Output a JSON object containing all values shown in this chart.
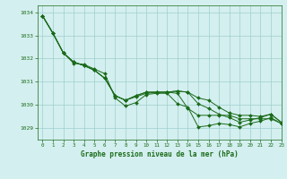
{
  "title": "Graphe pression niveau de la mer (hPa)",
  "background_color": "#d4efef",
  "grid_color": "#9ecece",
  "line_color": "#1a6b1a",
  "marker_color": "#1a6b1a",
  "xlim": [
    -0.5,
    23
  ],
  "ylim": [
    1028.5,
    1034.3
  ],
  "yticks": [
    1029,
    1030,
    1031,
    1032,
    1033,
    1034
  ],
  "xticks": [
    0,
    1,
    2,
    3,
    4,
    5,
    6,
    7,
    8,
    9,
    10,
    11,
    12,
    13,
    14,
    15,
    16,
    17,
    18,
    19,
    20,
    21,
    22,
    23
  ],
  "series": [
    [
      1033.85,
      1033.1,
      1032.25,
      1031.8,
      1031.75,
      1031.55,
      1031.35,
      1030.3,
      1029.95,
      1030.1,
      1030.45,
      1030.5,
      1030.5,
      1030.05,
      1029.9,
      1029.05,
      1029.1,
      1029.2,
      1029.15,
      1029.05,
      1029.2,
      1029.3,
      1029.45,
      1029.2
    ],
    [
      1033.85,
      1033.1,
      1032.25,
      1031.85,
      1031.7,
      1031.5,
      1031.15,
      1030.4,
      1030.2,
      1030.35,
      1030.5,
      1030.55,
      1030.55,
      1030.5,
      1029.85,
      1029.55,
      1029.55,
      1029.55,
      1029.55,
      1029.4,
      1029.4,
      1029.4,
      1029.4,
      1029.2
    ],
    [
      1033.85,
      1033.1,
      1032.25,
      1031.85,
      1031.7,
      1031.5,
      1031.15,
      1030.4,
      1030.2,
      1030.4,
      1030.55,
      1030.55,
      1030.55,
      1030.6,
      1030.55,
      1030.05,
      1029.85,
      1029.6,
      1029.45,
      1029.25,
      1029.35,
      1029.45,
      1029.6,
      1029.25
    ],
    [
      1033.85,
      1033.1,
      1032.25,
      1031.85,
      1031.7,
      1031.5,
      1031.15,
      1030.4,
      1030.2,
      1030.4,
      1030.55,
      1030.55,
      1030.55,
      1030.6,
      1030.55,
      1030.3,
      1030.2,
      1029.9,
      1029.65,
      1029.55,
      1029.55,
      1029.5,
      1029.6,
      1029.25
    ]
  ]
}
